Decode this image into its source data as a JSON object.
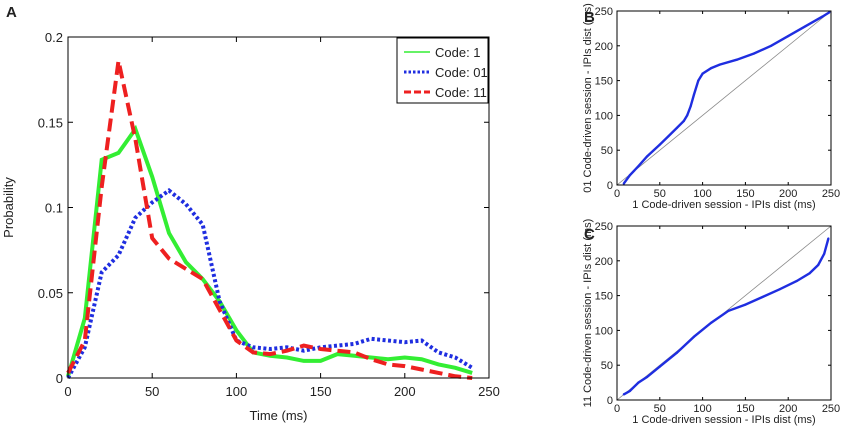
{
  "chart_data": [
    {
      "panel": "A",
      "type": "line",
      "title": "",
      "xlabel": "Time (ms)",
      "ylabel": "Probability",
      "xlim": [
        0,
        250
      ],
      "ylim": [
        0,
        0.2
      ],
      "xticks": [
        0,
        50,
        100,
        150,
        200,
        250
      ],
      "yticks": [
        0,
        0.05,
        0.1,
        0.15,
        0.2
      ],
      "xtick_labels": [
        "0",
        "50",
        "100",
        "150",
        "200",
        "250"
      ],
      "ytick_labels": [
        "0",
        "0.05",
        "0.1",
        "0.15",
        "0.2"
      ],
      "grid": false,
      "legend_position": "top-right",
      "series": [
        {
          "name": "Code: 1",
          "color": "#33ee33",
          "style": "solid",
          "x": [
            0,
            10,
            20,
            30,
            40,
            50,
            60,
            70,
            80,
            90,
            100,
            110,
            120,
            130,
            140,
            150,
            160,
            170,
            180,
            190,
            200,
            210,
            220,
            230,
            240
          ],
          "y": [
            0.001,
            0.035,
            0.128,
            0.132,
            0.146,
            0.118,
            0.085,
            0.068,
            0.058,
            0.045,
            0.028,
            0.015,
            0.013,
            0.012,
            0.01,
            0.01,
            0.014,
            0.013,
            0.012,
            0.011,
            0.012,
            0.011,
            0.008,
            0.006,
            0.003
          ]
        },
        {
          "name": "Code: 01",
          "color": "#1f2ee0",
          "style": "dotted",
          "x": [
            0,
            10,
            20,
            30,
            40,
            50,
            60,
            70,
            80,
            90,
            100,
            110,
            120,
            130,
            140,
            150,
            160,
            170,
            180,
            190,
            200,
            210,
            220,
            230,
            240
          ],
          "y": [
            0.0,
            0.018,
            0.062,
            0.072,
            0.094,
            0.103,
            0.11,
            0.102,
            0.09,
            0.045,
            0.022,
            0.018,
            0.017,
            0.018,
            0.016,
            0.018,
            0.019,
            0.02,
            0.023,
            0.022,
            0.021,
            0.022,
            0.015,
            0.012,
            0.006
          ]
        },
        {
          "name": "Code: 11",
          "color": "#ee2020",
          "style": "dashed",
          "x": [
            0,
            10,
            20,
            30,
            40,
            50,
            60,
            70,
            80,
            90,
            100,
            110,
            120,
            130,
            140,
            150,
            160,
            170,
            180,
            190,
            200,
            210,
            220,
            230,
            240
          ],
          "y": [
            0.003,
            0.022,
            0.112,
            0.186,
            0.14,
            0.082,
            0.07,
            0.064,
            0.058,
            0.04,
            0.022,
            0.015,
            0.014,
            0.016,
            0.019,
            0.017,
            0.016,
            0.015,
            0.011,
            0.008,
            0.007,
            0.005,
            0.003,
            0.001,
            0.0
          ]
        }
      ]
    },
    {
      "panel": "B",
      "type": "line",
      "title": "",
      "xlabel": "1 Code-driven session - IPIs dist (ms)",
      "ylabel": "01 Code-driven session - IPIs dist (ms)",
      "xlim": [
        0,
        250
      ],
      "ylim": [
        0,
        250
      ],
      "xticks": [
        0,
        50,
        100,
        150,
        200,
        250
      ],
      "yticks": [
        0,
        50,
        100,
        150,
        200,
        250
      ],
      "xtick_labels": [
        "0",
        "50",
        "100",
        "150",
        "200",
        "250"
      ],
      "ytick_labels": [
        "0",
        "50",
        "100",
        "150",
        "200",
        "250"
      ],
      "grid": false,
      "series": [
        {
          "name": "reference",
          "color": "#888888",
          "style": "solid",
          "x": [
            0,
            250
          ],
          "y": [
            0,
            250
          ]
        },
        {
          "name": "quantiles",
          "color": "#1f2ee0",
          "style": "solid",
          "x": [
            8,
            15,
            25,
            35,
            50,
            60,
            70,
            78,
            82,
            86,
            90,
            95,
            100,
            110,
            120,
            140,
            160,
            180,
            200,
            220,
            240,
            248
          ],
          "y": [
            2,
            14,
            27,
            41,
            58,
            70,
            82,
            92,
            100,
            113,
            130,
            150,
            160,
            168,
            173,
            180,
            189,
            200,
            214,
            228,
            242,
            248
          ]
        }
      ]
    },
    {
      "panel": "C",
      "type": "line",
      "title": "",
      "xlabel": "1 Code-driven session - IPIs dist (ms)",
      "ylabel": "11 Code-driven session - IPIs dist (ms)",
      "xlim": [
        0,
        250
      ],
      "ylim": [
        0,
        250
      ],
      "xticks": [
        0,
        50,
        100,
        150,
        200,
        250
      ],
      "yticks": [
        0,
        50,
        100,
        150,
        200,
        250
      ],
      "xtick_labels": [
        "0",
        "50",
        "100",
        "150",
        "200",
        "250"
      ],
      "ytick_labels": [
        "0",
        "50",
        "100",
        "150",
        "200",
        "250"
      ],
      "grid": false,
      "series": [
        {
          "name": "reference",
          "color": "#888888",
          "style": "solid",
          "x": [
            0,
            250
          ],
          "y": [
            0,
            250
          ]
        },
        {
          "name": "quantiles",
          "color": "#1f2ee0",
          "style": "solid",
          "x": [
            8,
            15,
            25,
            35,
            50,
            70,
            90,
            110,
            130,
            150,
            170,
            190,
            210,
            225,
            235,
            242,
            247
          ],
          "y": [
            8,
            13,
            25,
            33,
            48,
            68,
            91,
            111,
            128,
            137,
            148,
            159,
            171,
            182,
            194,
            210,
            232
          ]
        }
      ]
    }
  ]
}
